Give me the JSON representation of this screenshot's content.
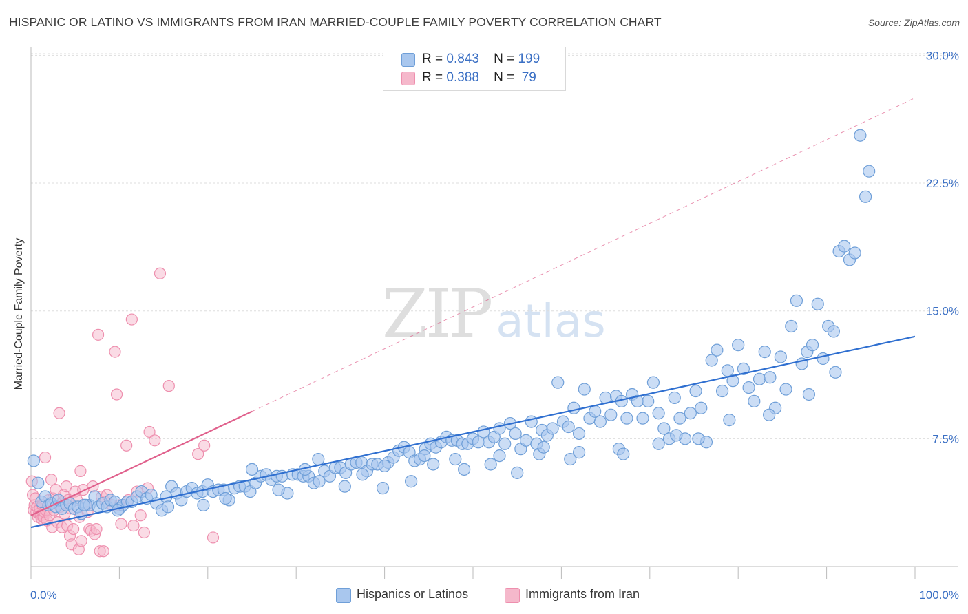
{
  "header": {
    "title": "HISPANIC OR LATINO VS IMMIGRANTS FROM IRAN MARRIED-COUPLE FAMILY POVERTY CORRELATION CHART",
    "source": "Source: ZipAtlas.com"
  },
  "watermark": {
    "zip": "ZIP",
    "atlas": "atlas"
  },
  "legend": {
    "blue": {
      "r_label": "R =",
      "r_value": "0.843",
      "n_label": "N =",
      "n_value": "199"
    },
    "pink": {
      "r_label": "R =",
      "r_value": "0.388",
      "n_label": "N =",
      "n_value": " 79"
    }
  },
  "colors": {
    "blue_fill": "#a9c7ee",
    "blue_stroke": "#6f9fd8",
    "blue_line": "#2f6fd0",
    "pink_fill": "#f5b8cb",
    "pink_stroke": "#ee8fae",
    "pink_line": "#e0608c",
    "tick_label": "#3a6fc4",
    "grid": "#dddddd"
  },
  "chart_data": {
    "type": "scatter",
    "title": "HISPANIC OR LATINO VS IMMIGRANTS FROM IRAN MARRIED-COUPLE FAMILY POVERTY CORRELATION CHART",
    "xlabel": "",
    "ylabel": "Married-Couple Family Poverty",
    "xlim": [
      0,
      100
    ],
    "ylim": [
      0,
      30.5
    ],
    "x_ticks": [
      "0.0%",
      "100.0%"
    ],
    "y_ticks": [
      {
        "value": 7.5,
        "label": "7.5%"
      },
      {
        "value": 15,
        "label": "15.0%"
      },
      {
        "value": 22.5,
        "label": "22.5%"
      },
      {
        "value": 30,
        "label": "30.0%"
      }
    ],
    "grid": true,
    "legend_position": "top-center",
    "series": [
      {
        "name": "Hispanics or Latinos",
        "color": "#a9c7ee",
        "trend": {
          "x": [
            0,
            100
          ],
          "y": [
            2.3,
            13.5
          ],
          "style": "solid"
        },
        "points": [
          [
            0.3,
            6.2
          ],
          [
            0.8,
            4.9
          ],
          [
            1.2,
            3.8
          ],
          [
            1.6,
            4.1
          ],
          [
            2.0,
            3.6
          ],
          [
            2.3,
            3.7
          ],
          [
            2.8,
            3.5
          ],
          [
            3.1,
            3.9
          ],
          [
            3.5,
            3.4
          ],
          [
            4.0,
            3.6
          ],
          [
            4.4,
            3.7
          ],
          [
            4.9,
            3.4
          ],
          [
            5.3,
            3.5
          ],
          [
            5.7,
            3.1
          ],
          [
            6.2,
            3.6
          ],
          [
            6.6,
            3.6
          ],
          [
            7.2,
            4.1
          ],
          [
            7.6,
            3.5
          ],
          [
            8.1,
            3.7
          ],
          [
            8.6,
            3.5
          ],
          [
            9.0,
            3.9
          ],
          [
            9.5,
            3.8
          ],
          [
            10.0,
            3.4
          ],
          [
            10.4,
            3.6
          ],
          [
            10.9,
            3.8
          ],
          [
            11.4,
            3.8
          ],
          [
            12.0,
            4.1
          ],
          [
            12.5,
            4.4
          ],
          [
            13.1,
            4.0
          ],
          [
            13.6,
            4.2
          ],
          [
            14.2,
            3.7
          ],
          [
            14.8,
            3.3
          ],
          [
            15.3,
            4.1
          ],
          [
            15.9,
            4.7
          ],
          [
            16.5,
            4.3
          ],
          [
            17.0,
            3.9
          ],
          [
            17.6,
            4.4
          ],
          [
            18.2,
            4.6
          ],
          [
            18.8,
            4.3
          ],
          [
            19.4,
            4.4
          ],
          [
            20.0,
            4.8
          ],
          [
            20.6,
            4.4
          ],
          [
            21.2,
            4.5
          ],
          [
            21.8,
            4.5
          ],
          [
            22.4,
            3.9
          ],
          [
            23.0,
            4.6
          ],
          [
            23.6,
            4.7
          ],
          [
            24.2,
            4.7
          ],
          [
            24.8,
            4.4
          ],
          [
            25.4,
            4.9
          ],
          [
            26.0,
            5.3
          ],
          [
            26.6,
            5.4
          ],
          [
            27.2,
            5.1
          ],
          [
            27.8,
            5.3
          ],
          [
            28.4,
            5.3
          ],
          [
            29.0,
            4.3
          ],
          [
            29.6,
            5.4
          ],
          [
            30.2,
            5.4
          ],
          [
            30.8,
            5.3
          ],
          [
            31.4,
            5.3
          ],
          [
            32.0,
            4.9
          ],
          [
            32.6,
            5.0
          ],
          [
            33.2,
            5.6
          ],
          [
            33.8,
            5.3
          ],
          [
            34.4,
            5.8
          ],
          [
            35.0,
            5.8
          ],
          [
            35.6,
            5.5
          ],
          [
            36.2,
            6.0
          ],
          [
            36.8,
            6.1
          ],
          [
            37.4,
            6.1
          ],
          [
            38.0,
            5.6
          ],
          [
            38.6,
            6.0
          ],
          [
            39.2,
            6.0
          ],
          [
            39.8,
            4.6
          ],
          [
            40.4,
            6.1
          ],
          [
            41.0,
            6.4
          ],
          [
            41.6,
            6.8
          ],
          [
            42.2,
            7.0
          ],
          [
            42.8,
            6.7
          ],
          [
            43.4,
            6.2
          ],
          [
            44.0,
            6.3
          ],
          [
            44.6,
            6.9
          ],
          [
            45.2,
            7.2
          ],
          [
            45.8,
            7.0
          ],
          [
            46.4,
            7.3
          ],
          [
            47.0,
            7.6
          ],
          [
            47.6,
            7.4
          ],
          [
            48.2,
            7.4
          ],
          [
            48.8,
            7.2
          ],
          [
            49.4,
            7.2
          ],
          [
            50.0,
            7.5
          ],
          [
            50.6,
            7.3
          ],
          [
            51.2,
            7.9
          ],
          [
            51.8,
            7.3
          ],
          [
            52.4,
            7.6
          ],
          [
            53.0,
            8.1
          ],
          [
            53.6,
            7.2
          ],
          [
            54.2,
            8.4
          ],
          [
            54.8,
            7.8
          ],
          [
            55.4,
            6.9
          ],
          [
            56.0,
            7.4
          ],
          [
            56.6,
            8.5
          ],
          [
            57.2,
            7.2
          ],
          [
            57.8,
            8.0
          ],
          [
            58.4,
            7.7
          ],
          [
            59.0,
            8.1
          ],
          [
            59.6,
            10.8
          ],
          [
            60.2,
            8.5
          ],
          [
            60.8,
            8.2
          ],
          [
            61.4,
            9.3
          ],
          [
            62.0,
            7.8
          ],
          [
            62.6,
            10.4
          ],
          [
            63.2,
            8.7
          ],
          [
            63.8,
            9.1
          ],
          [
            64.4,
            8.5
          ],
          [
            65.0,
            9.9
          ],
          [
            65.6,
            8.9
          ],
          [
            66.2,
            10.0
          ],
          [
            66.8,
            9.7
          ],
          [
            67.4,
            8.7
          ],
          [
            68.0,
            10.1
          ],
          [
            68.6,
            9.7
          ],
          [
            69.2,
            8.7
          ],
          [
            69.8,
            9.7
          ],
          [
            70.4,
            10.8
          ],
          [
            71.0,
            9.0
          ],
          [
            71.6,
            8.1
          ],
          [
            72.2,
            7.5
          ],
          [
            72.8,
            9.9
          ],
          [
            73.4,
            8.7
          ],
          [
            74.0,
            7.5
          ],
          [
            74.6,
            9.0
          ],
          [
            75.2,
            10.3
          ],
          [
            75.8,
            9.3
          ],
          [
            76.4,
            7.3
          ],
          [
            77.0,
            12.1
          ],
          [
            77.6,
            12.7
          ],
          [
            78.2,
            10.3
          ],
          [
            78.8,
            11.5
          ],
          [
            79.4,
            10.9
          ],
          [
            80.0,
            13.0
          ],
          [
            80.6,
            11.6
          ],
          [
            81.2,
            10.5
          ],
          [
            81.8,
            9.7
          ],
          [
            82.4,
            11.0
          ],
          [
            83.0,
            12.6
          ],
          [
            83.6,
            11.1
          ],
          [
            84.2,
            9.3
          ],
          [
            84.8,
            12.3
          ],
          [
            85.4,
            10.4
          ],
          [
            86.0,
            14.1
          ],
          [
            86.6,
            15.6
          ],
          [
            87.2,
            11.9
          ],
          [
            87.8,
            12.6
          ],
          [
            88.4,
            13.0
          ],
          [
            89.0,
            15.4
          ],
          [
            89.6,
            12.2
          ],
          [
            90.2,
            14.1
          ],
          [
            90.8,
            13.8
          ],
          [
            91.4,
            18.5
          ],
          [
            92.0,
            18.8
          ],
          [
            92.6,
            18.0
          ],
          [
            93.2,
            18.4
          ],
          [
            93.8,
            25.3
          ],
          [
            94.4,
            21.7
          ],
          [
            94.8,
            23.2
          ],
          [
            32.5,
            6.3
          ],
          [
            40.0,
            5.9
          ],
          [
            45.5,
            6.0
          ],
          [
            48.0,
            6.3
          ],
          [
            53.0,
            6.5
          ],
          [
            57.5,
            6.6
          ],
          [
            62.0,
            6.7
          ],
          [
            66.5,
            6.9
          ],
          [
            71.0,
            7.2
          ],
          [
            75.5,
            7.5
          ],
          [
            79.0,
            8.6
          ],
          [
            83.5,
            8.9
          ],
          [
            88.0,
            10.1
          ],
          [
            91.0,
            11.4
          ],
          [
            19.5,
            3.6
          ],
          [
            22.0,
            4.0
          ],
          [
            28.0,
            4.5
          ],
          [
            35.5,
            4.7
          ],
          [
            43.0,
            5.0
          ],
          [
            49.0,
            5.7
          ],
          [
            55.0,
            5.5
          ],
          [
            61.0,
            6.3
          ],
          [
            67.0,
            6.6
          ],
          [
            73.0,
            7.7
          ],
          [
            6.0,
            3.6
          ],
          [
            9.8,
            3.3
          ],
          [
            15.5,
            3.5
          ],
          [
            25.0,
            5.7
          ],
          [
            31.0,
            5.7
          ],
          [
            37.5,
            5.4
          ],
          [
            44.5,
            6.5
          ],
          [
            52.0,
            6.0
          ],
          [
            58.0,
            7.0
          ]
        ]
      },
      {
        "name": "Immigrants from Iran",
        "color": "#f5b8cb",
        "trend": {
          "x": [
            0,
            25
          ],
          "y": [
            3.0,
            9.1
          ],
          "style": "solid"
        },
        "trend_extension": {
          "x": [
            25,
            100
          ],
          "y": [
            9.1,
            27.5
          ],
          "style": "dashed"
        },
        "points": [
          [
            0.1,
            5.0
          ],
          [
            0.2,
            4.2
          ],
          [
            0.3,
            3.3
          ],
          [
            0.4,
            3.6
          ],
          [
            0.5,
            4.0
          ],
          [
            0.6,
            3.2
          ],
          [
            0.7,
            3.5
          ],
          [
            0.8,
            2.9
          ],
          [
            0.9,
            3.1
          ],
          [
            1.0,
            3.4
          ],
          [
            1.1,
            3.0
          ],
          [
            1.2,
            2.8
          ],
          [
            1.3,
            3.6
          ],
          [
            1.4,
            2.9
          ],
          [
            1.5,
            3.2
          ],
          [
            1.6,
            6.4
          ],
          [
            1.7,
            3.3
          ],
          [
            1.8,
            2.7
          ],
          [
            2.0,
            3.9
          ],
          [
            2.1,
            3.0
          ],
          [
            2.3,
            5.1
          ],
          [
            2.4,
            2.3
          ],
          [
            2.5,
            4.0
          ],
          [
            2.6,
            3.3
          ],
          [
            2.8,
            4.5
          ],
          [
            3.0,
            2.6
          ],
          [
            3.2,
            9.0
          ],
          [
            3.3,
            3.5
          ],
          [
            3.5,
            2.3
          ],
          [
            3.6,
            3.8
          ],
          [
            3.7,
            4.2
          ],
          [
            3.8,
            3.1
          ],
          [
            4.0,
            4.7
          ],
          [
            4.1,
            2.4
          ],
          [
            4.2,
            3.9
          ],
          [
            4.4,
            1.8
          ],
          [
            4.5,
            3.4
          ],
          [
            4.6,
            1.3
          ],
          [
            4.8,
            2.2
          ],
          [
            5.0,
            4.4
          ],
          [
            5.2,
            3.9
          ],
          [
            5.4,
            1.0
          ],
          [
            5.5,
            2.9
          ],
          [
            5.6,
            5.6
          ],
          [
            5.7,
            1.5
          ],
          [
            5.9,
            4.5
          ],
          [
            6.2,
            3.6
          ],
          [
            6.4,
            3.2
          ],
          [
            6.6,
            2.2
          ],
          [
            6.8,
            2.1
          ],
          [
            7.0,
            4.7
          ],
          [
            7.2,
            1.9
          ],
          [
            7.4,
            2.2
          ],
          [
            7.6,
            13.6
          ],
          [
            7.8,
            0.9
          ],
          [
            8.0,
            4.1
          ],
          [
            8.2,
            0.9
          ],
          [
            8.4,
            3.8
          ],
          [
            8.6,
            4.2
          ],
          [
            9.2,
            3.6
          ],
          [
            9.5,
            12.6
          ],
          [
            9.7,
            10.1
          ],
          [
            10.0,
            3.6
          ],
          [
            10.2,
            2.5
          ],
          [
            10.8,
            7.1
          ],
          [
            11.0,
            3.9
          ],
          [
            11.4,
            14.5
          ],
          [
            11.6,
            2.4
          ],
          [
            12.0,
            4.4
          ],
          [
            12.4,
            3.0
          ],
          [
            12.8,
            2.0
          ],
          [
            13.4,
            7.9
          ],
          [
            14.0,
            7.4
          ],
          [
            14.6,
            17.2
          ],
          [
            15.6,
            10.6
          ],
          [
            18.9,
            6.6
          ],
          [
            19.6,
            7.1
          ],
          [
            20.6,
            1.7
          ],
          [
            13.2,
            4.6
          ]
        ]
      }
    ]
  },
  "bottom_legend": {
    "blue_label": "Hispanics or Latinos",
    "pink_label": "Immigrants from Iran"
  }
}
